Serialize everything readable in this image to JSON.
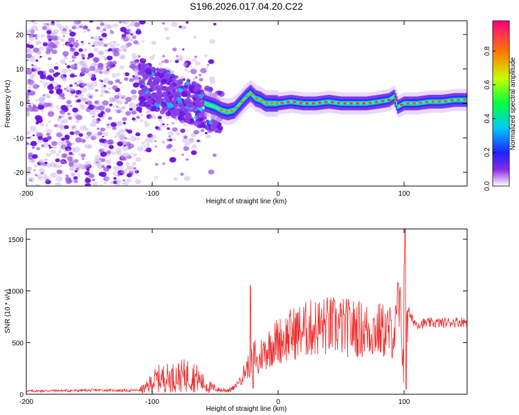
{
  "title": "S196.2026.017.04.20.C22",
  "chart_data": [
    {
      "type": "heatmap",
      "xlabel": "Height of straight line (km)",
      "ylabel": "Frequency (Hz)",
      "xlim": [
        -200,
        150
      ],
      "ylim": [
        -24,
        24
      ],
      "xticks": [
        -200,
        -100,
        0,
        100
      ],
      "yticks": [
        -20,
        -10,
        0,
        10,
        20
      ],
      "colorbar": {
        "label": "Normalized spectral amplitude",
        "range": [
          0,
          0.98
        ],
        "ticks": [
          "0.0",
          "0.2",
          "0.4",
          "0.6",
          "0.8"
        ]
      },
      "ridge": {
        "x": [
          -58,
          -50,
          -45,
          -40,
          -35,
          -30,
          -25,
          -22,
          -18,
          -14,
          -10,
          -5,
          0,
          10,
          20,
          30,
          40,
          50,
          60,
          70,
          80,
          88,
          92,
          95,
          100,
          110,
          120,
          130,
          140,
          150
        ],
        "freq": [
          0,
          -1,
          -2,
          -2.5,
          -2,
          0,
          2,
          3,
          1.5,
          1,
          0,
          0,
          0,
          0.5,
          0,
          0,
          0.5,
          0,
          0,
          0,
          0.5,
          1,
          2,
          -1,
          0,
          0,
          0.5,
          0.5,
          1,
          1
        ]
      }
    },
    {
      "type": "line",
      "xlabel": "Height of straight line (km)",
      "ylabel": "SNR (10 * v/v)",
      "xlim": [
        -200,
        150
      ],
      "ylim": [
        0,
        1600
      ],
      "xticks": [
        -200,
        -100,
        0,
        100
      ],
      "yticks": [
        0,
        500,
        1000,
        1500
      ],
      "series": [
        {
          "name": "SNR",
          "color": "#ee3030",
          "x": [
            -200,
            -180,
            -160,
            -140,
            -120,
            -110,
            -105,
            -100,
            -95,
            -90,
            -85,
            -80,
            -75,
            -70,
            -65,
            -60,
            -55,
            -50,
            -45,
            -40,
            -35,
            -30,
            -25,
            -22,
            -20,
            -18,
            -16,
            -14,
            -10,
            -5,
            0,
            5,
            10,
            20,
            30,
            40,
            50,
            60,
            70,
            80,
            90,
            95,
            98,
            100,
            102,
            105,
            110,
            120,
            130,
            140,
            150
          ],
          "y": [
            30,
            35,
            35,
            40,
            35,
            40,
            60,
            120,
            150,
            160,
            160,
            170,
            180,
            190,
            160,
            110,
            70,
            50,
            40,
            40,
            60,
            150,
            250,
            300,
            350,
            400,
            250,
            380,
            420,
            480,
            520,
            540,
            580,
            620,
            650,
            660,
            650,
            640,
            620,
            620,
            600,
            640,
            700,
            120,
            900,
            740,
            680,
            690,
            690,
            700,
            700
          ],
          "peaks": [
            [
              -22,
              1050
            ],
            [
              -20,
              60
            ],
            [
              95,
              1080
            ],
            [
              100,
              1260
            ],
            [
              101,
              1600
            ],
            [
              101.5,
              50
            ]
          ]
        }
      ]
    }
  ]
}
